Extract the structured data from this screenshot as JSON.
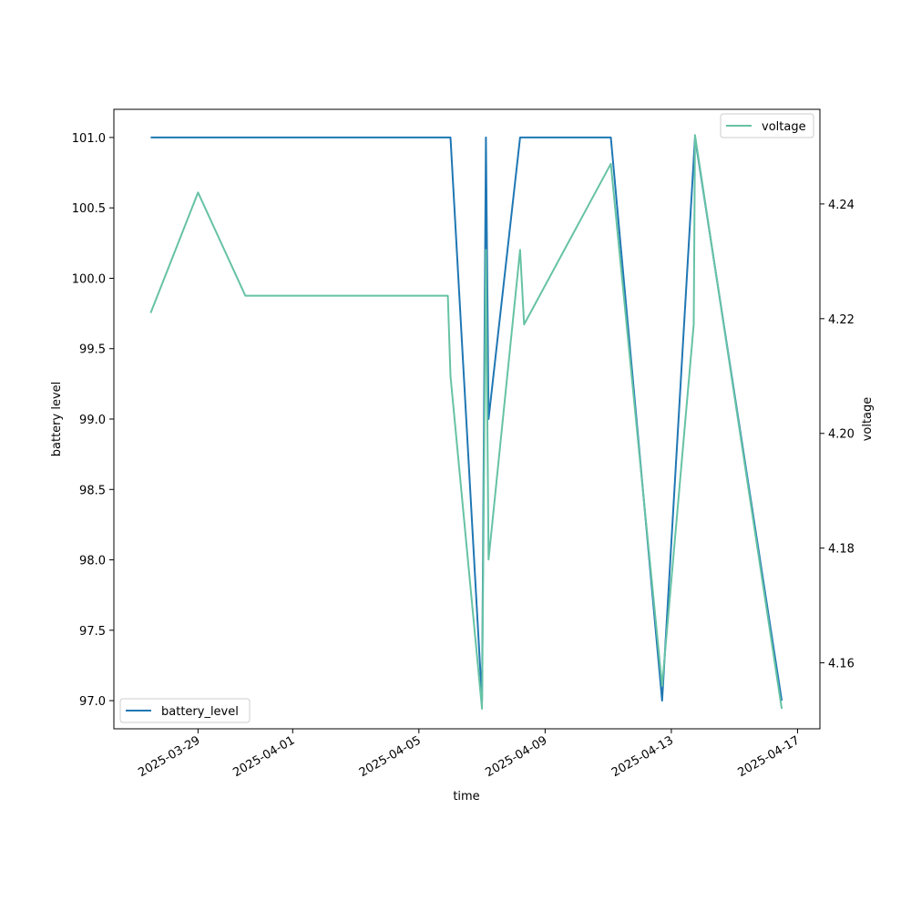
{
  "chart_data": {
    "type": "line",
    "title": "",
    "xlabel": "time",
    "ylabel": "battery level",
    "y2label": "voltage",
    "xlim": [
      "2025-03-26T08:00",
      "2025-04-17T17:00"
    ],
    "ylim": [
      96.8,
      101.2
    ],
    "y2lim": [
      4.1485,
      4.2565
    ],
    "x_ticks": [
      "2025-03-29",
      "2025-04-01",
      "2025-04-05",
      "2025-04-09",
      "2025-04-13",
      "2025-04-17"
    ],
    "y_ticks": [
      "97.0",
      "97.5",
      "98.0",
      "98.5",
      "99.0",
      "99.5",
      "100.0",
      "100.5",
      "101.0"
    ],
    "y2_ticks": [
      "4.16",
      "4.18",
      "4.20",
      "4.22",
      "4.24"
    ],
    "grid": false,
    "series": [
      {
        "name": "battery_level",
        "axis": "left",
        "color": "#1f77b4",
        "legend": "lower-left",
        "points": [
          [
            "2025-03-27T12:00",
            101.0
          ],
          [
            "2025-04-06T00:00",
            101.0
          ],
          [
            "2025-04-07T00:00",
            97.0
          ],
          [
            "2025-04-07T03:00",
            101.0
          ],
          [
            "2025-04-07T05:00",
            99.0
          ],
          [
            "2025-04-08T05:00",
            101.0
          ],
          [
            "2025-04-11T02:00",
            101.0
          ],
          [
            "2025-04-12T17:00",
            97.0
          ],
          [
            "2025-04-13T18:00",
            101.0
          ],
          [
            "2025-04-16T12:00",
            97.0
          ]
        ]
      },
      {
        "name": "voltage",
        "axis": "right",
        "color": "#66c2a5",
        "legend": "upper-right",
        "points": [
          [
            "2025-03-27T12:00",
            4.221
          ],
          [
            "2025-03-29T00:00",
            4.242
          ],
          [
            "2025-03-30T12:00",
            4.224
          ],
          [
            "2025-04-05T22:00",
            4.224
          ],
          [
            "2025-04-06T00:00",
            4.21
          ],
          [
            "2025-04-07T00:00",
            4.152
          ],
          [
            "2025-04-07T03:00",
            4.232
          ],
          [
            "2025-04-07T05:00",
            4.178
          ],
          [
            "2025-04-08T05:00",
            4.232
          ],
          [
            "2025-04-08T08:00",
            4.219
          ],
          [
            "2025-04-11T02:00",
            4.247
          ],
          [
            "2025-04-12T17:00",
            4.156
          ],
          [
            "2025-04-13T17:00",
            4.219
          ],
          [
            "2025-04-13T18:00",
            4.252
          ],
          [
            "2025-04-16T12:00",
            4.152
          ]
        ]
      }
    ]
  }
}
